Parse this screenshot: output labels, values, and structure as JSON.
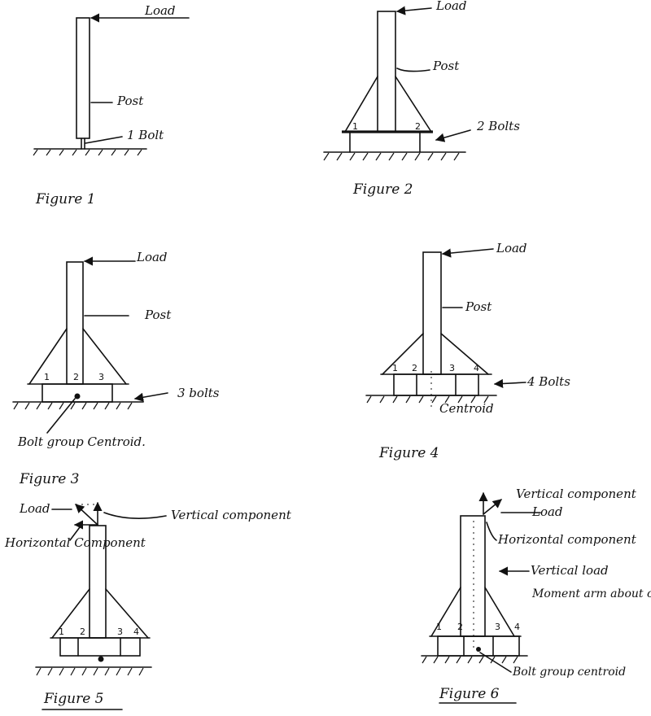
{
  "figure1": {
    "load": "Load",
    "post": "Post",
    "bolt": "1 Bolt",
    "caption": "Figure 1"
  },
  "figure2": {
    "load": "Load",
    "post": "Post",
    "bolts": "2 Bolts",
    "caption": "Figure 2",
    "numbers": [
      "1",
      "2"
    ]
  },
  "figure3": {
    "load": "Load",
    "post": "Post",
    "bolts": "3 bolts",
    "centroid": "Bolt group Centroid.",
    "caption": "Figure 3",
    "numbers": [
      "1",
      "2",
      "3"
    ]
  },
  "figure4": {
    "load": "Load",
    "post": "Post",
    "bolts": "4 Bolts",
    "centroid": "Centroid",
    "caption": "Figure 4",
    "numbers": [
      "1",
      "2",
      "3",
      "4"
    ]
  },
  "figure5": {
    "load": "Load",
    "vertical": "Vertical component",
    "horizontal": "Horizontal Component",
    "caption": "Figure 5",
    "numbers": [
      "1",
      "2",
      "3",
      "4"
    ]
  },
  "figure6": {
    "vertical": "Vertical component",
    "load": "Load",
    "horizontal": "Horizontal component",
    "vertical_load": "Vertical load",
    "moment": "Moment arm about centroid.",
    "centroid": "Bolt group centroid",
    "caption": "Figure 6",
    "numbers": [
      "1",
      "2",
      "3",
      "4"
    ]
  }
}
